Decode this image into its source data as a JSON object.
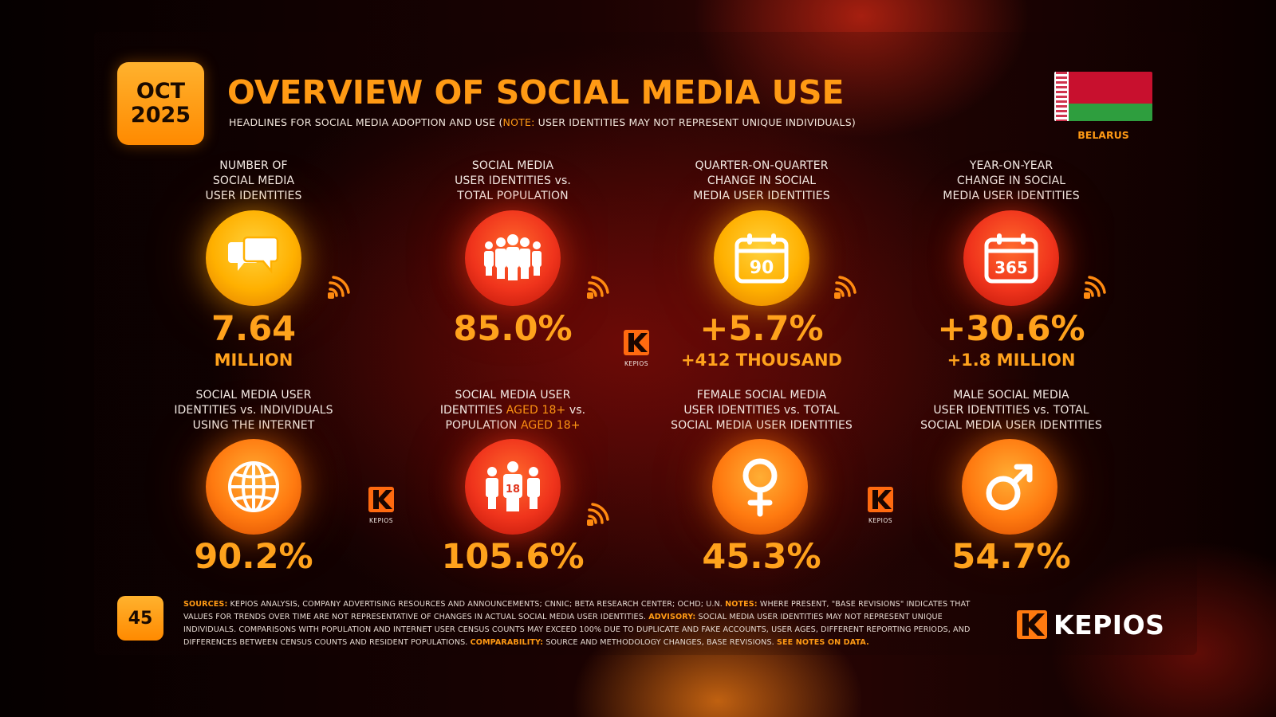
{
  "header": {
    "date_month": "OCT",
    "date_year": "2025",
    "title": "OVERVIEW OF SOCIAL MEDIA USE",
    "subtitle_pre": "HEADLINES FOR SOCIAL MEDIA ADOPTION AND USE (",
    "subtitle_note": "NOTE:",
    "subtitle_post": " USER IDENTITIES MAY NOT REPRESENT UNIQUE INDIVIDUALS)",
    "country": "BELARUS"
  },
  "colors": {
    "accent": "#ff9a14",
    "yellow": "#ffb000",
    "red": "#f0341c",
    "orange": "#ff7a10"
  },
  "stats": [
    {
      "label_lines": [
        "NUMBER OF",
        "SOCIAL MEDIA",
        "USER IDENTITIES"
      ],
      "value": "7.64",
      "sub": "MILLION",
      "icon": "speech-bubbles-icon"
    },
    {
      "label_lines": [
        "SOCIAL MEDIA",
        "USER IDENTITIES vs.",
        "TOTAL POPULATION"
      ],
      "value": "85.0%",
      "sub": "",
      "icon": "people-group-icon"
    },
    {
      "label_lines": [
        "QUARTER-ON-QUARTER",
        "CHANGE IN SOCIAL",
        "MEDIA USER IDENTITIES"
      ],
      "value": "+5.7%",
      "sub": "+412 THOUSAND",
      "icon": "calendar-90-icon",
      "calendar_text": "90"
    },
    {
      "label_lines": [
        "YEAR-ON-YEAR",
        "CHANGE IN SOCIAL",
        "MEDIA USER IDENTITIES"
      ],
      "value": "+30.6%",
      "sub": "+1.8 MILLION",
      "icon": "calendar-365-icon",
      "calendar_text": "365"
    },
    {
      "label_lines": [
        "SOCIAL MEDIA USER",
        "IDENTITIES vs. INDIVIDUALS",
        "USING THE INTERNET"
      ],
      "value": "90.2%",
      "sub": "",
      "icon": "globe-icon"
    },
    {
      "label_line1": "SOCIAL MEDIA USER",
      "label_line2_pre": "IDENTITIES ",
      "label_line2_hl": "AGED 18+",
      "label_line2_post": " vs.",
      "label_line3_pre": "POPULATION ",
      "label_line3_hl": "AGED 18+",
      "value": "105.6%",
      "sub": "",
      "icon": "people-18-icon",
      "badge_text": "18"
    },
    {
      "label_lines": [
        "FEMALE SOCIAL MEDIA",
        "USER IDENTITIES vs. TOTAL",
        "SOCIAL MEDIA USER IDENTITIES"
      ],
      "value": "45.3%",
      "sub": "",
      "icon": "female-symbol-icon"
    },
    {
      "label_lines": [
        "MALE SOCIAL MEDIA",
        "USER IDENTITIES vs. TOTAL",
        "SOCIAL MEDIA USER IDENTITIES"
      ],
      "value": "54.7%",
      "sub": "",
      "icon": "male-symbol-icon"
    }
  ],
  "kepios_mark_label": "KEPIOS",
  "footer": {
    "page_number": "45",
    "sources_label": "SOURCES:",
    "sources_text": " KEPIOS ANALYSIS, COMPANY ADVERTISING RESOURCES AND ANNOUNCEMENTS; CNNIC; BETA RESEARCH CENTER; OCHD; U.N. ",
    "notes_label": "NOTES:",
    "notes_text": " WHERE PRESENT, \"BASE REVISIONS\" INDICATES THAT VALUES FOR TRENDS OVER TIME ARE NOT REPRESENTATIVE OF CHANGES IN ACTUAL SOCIAL MEDIA USER IDENTITIES.  ",
    "advisory_label": "ADVISORY:",
    "advisory_text": " SOCIAL MEDIA USER IDENTITIES MAY NOT REPRESENT UNIQUE INDIVIDUALS. COMPARISONS WITH POPULATION AND INTERNET USER CENSUS COUNTS MAY EXCEED 100% DUE TO DUPLICATE AND FAKE ACCOUNTS, USER AGES, DIFFERENT REPORTING PERIODS, AND DIFFERENCES BETWEEN CENSUS COUNTS AND RESIDENT POPULATIONS. ",
    "comparability_label": "COMPARABILITY:",
    "comparability_text": " SOURCE AND METHODOLOGY CHANGES, BASE REVISIONS. ",
    "see_notes": "SEE NOTES ON DATA.",
    "brand": "KEPIOS"
  }
}
